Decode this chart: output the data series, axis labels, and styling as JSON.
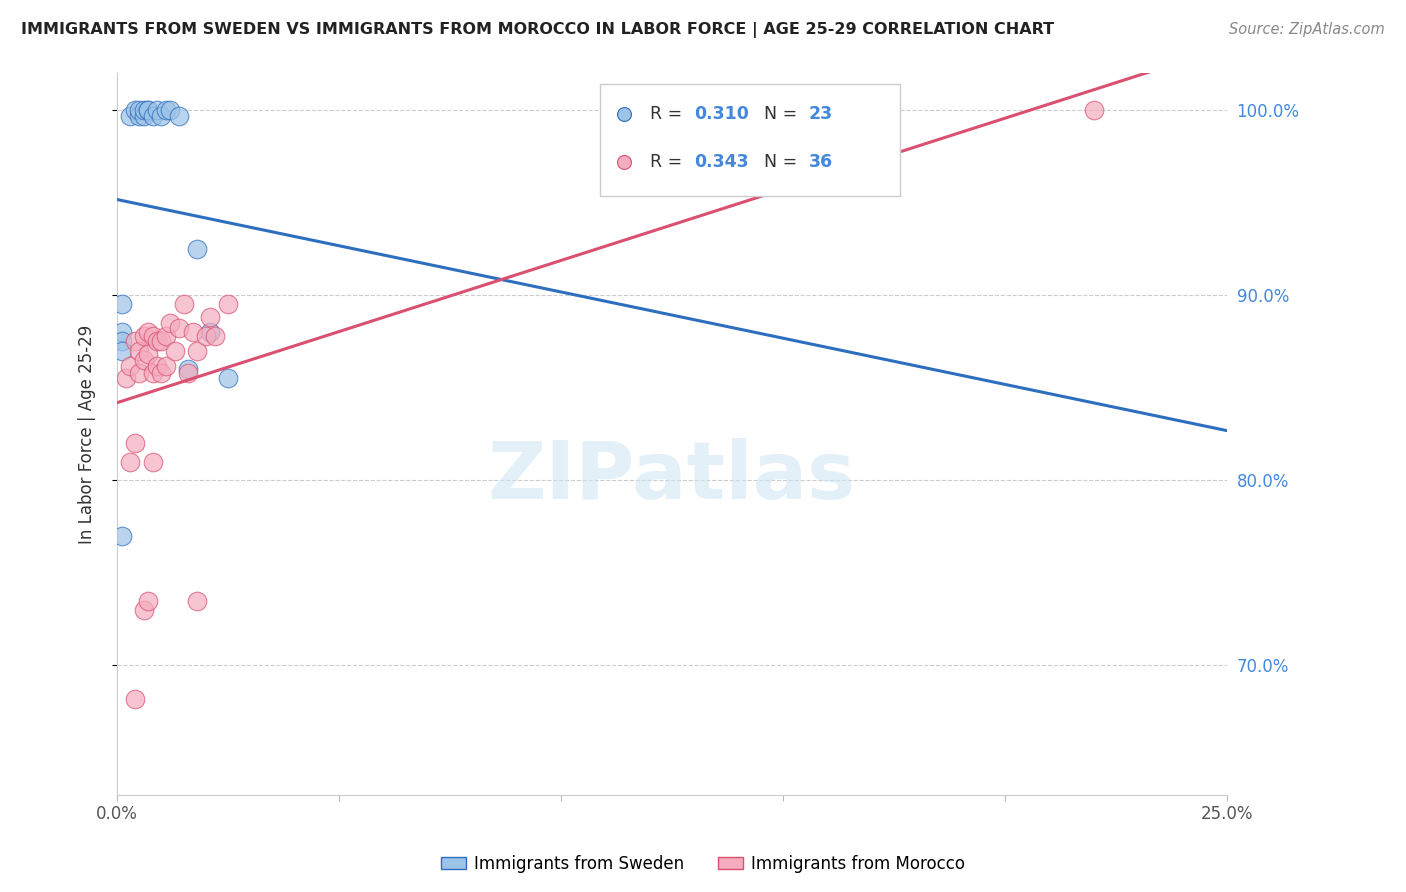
{
  "title": "IMMIGRANTS FROM SWEDEN VS IMMIGRANTS FROM MOROCCO IN LABOR FORCE | AGE 25-29 CORRELATION CHART",
  "source": "Source: ZipAtlas.com",
  "ylabel": "In Labor Force | Age 25-29",
  "legend_label_sweden": "Immigrants from Sweden",
  "legend_label_morocco": "Immigrants from Morocco",
  "R_sweden": 0.31,
  "N_sweden": 23,
  "R_morocco": 0.343,
  "N_morocco": 36,
  "xlim": [
    0.0,
    0.25
  ],
  "ylim": [
    0.63,
    1.02
  ],
  "yticks": [
    0.7,
    0.8,
    0.9,
    1.0
  ],
  "xticks": [
    0.0,
    0.05,
    0.1,
    0.15,
    0.2,
    0.25
  ],
  "color_sweden": "#9DC3E6",
  "color_morocco": "#F4ACBE",
  "line_color_sweden": "#2E6EBF",
  "line_color_morocco": "#D95070",
  "watermark": "ZIPatlas",
  "sweden_x": [
    0.003,
    0.004,
    0.005,
    0.005,
    0.006,
    0.006,
    0.007,
    0.007,
    0.008,
    0.009,
    0.01,
    0.011,
    0.012,
    0.014,
    0.016,
    0.018,
    0.021,
    0.025,
    0.001,
    0.001,
    0.001,
    0.001,
    0.001
  ],
  "sweden_y": [
    0.997,
    1.0,
    0.997,
    1.0,
    0.997,
    1.0,
    1.0,
    1.0,
    0.997,
    1.0,
    0.997,
    1.0,
    1.0,
    0.997,
    0.86,
    0.925,
    0.88,
    0.855,
    0.895,
    0.88,
    0.875,
    0.87,
    0.77
  ],
  "morocco_x": [
    0.002,
    0.003,
    0.004,
    0.005,
    0.005,
    0.006,
    0.006,
    0.007,
    0.007,
    0.008,
    0.008,
    0.009,
    0.009,
    0.01,
    0.01,
    0.011,
    0.011,
    0.012,
    0.013,
    0.014,
    0.015,
    0.016,
    0.017,
    0.018,
    0.02,
    0.021,
    0.022,
    0.025,
    0.003,
    0.004,
    0.006,
    0.007,
    0.008,
    0.018,
    0.22,
    0.004
  ],
  "morocco_y": [
    0.855,
    0.862,
    0.875,
    0.87,
    0.858,
    0.878,
    0.865,
    0.88,
    0.868,
    0.878,
    0.858,
    0.875,
    0.862,
    0.875,
    0.858,
    0.878,
    0.862,
    0.885,
    0.87,
    0.882,
    0.895,
    0.858,
    0.88,
    0.87,
    0.878,
    0.888,
    0.878,
    0.895,
    0.81,
    0.82,
    0.73,
    0.735,
    0.81,
    0.735,
    1.0,
    0.682
  ]
}
